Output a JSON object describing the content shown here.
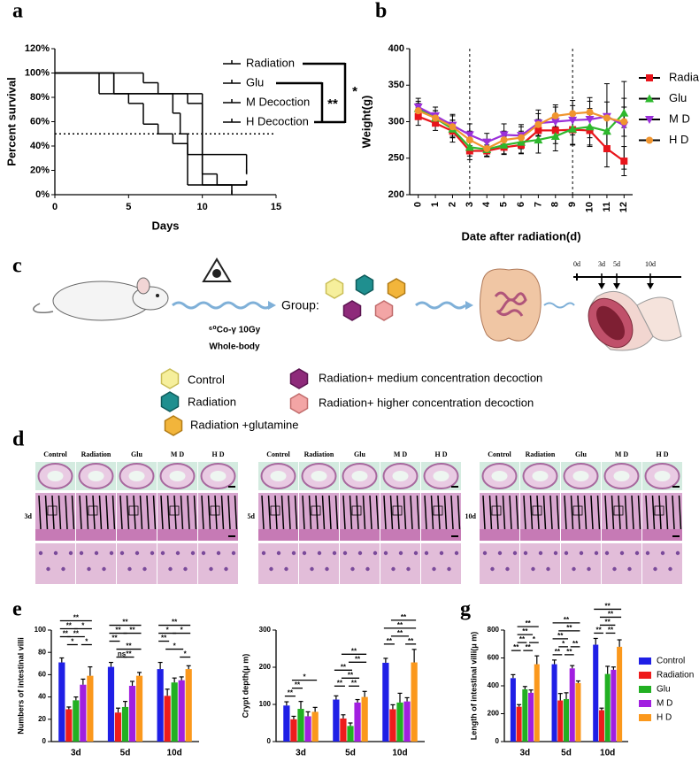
{
  "panel_labels": [
    "a",
    "b",
    "c",
    "d",
    "e",
    "g"
  ],
  "chart_data": [
    {
      "type": "step",
      "xlabel": "Days",
      "ylabel": "Percent survival",
      "xlim": [
        0,
        15
      ],
      "xticks": [
        0,
        5,
        10,
        15
      ],
      "ylim": [
        0,
        120
      ],
      "yticks": [
        {
          "value": 0,
          "label": "0%"
        },
        {
          "value": 20,
          "label": "20%"
        },
        {
          "value": 40,
          "label": "40%"
        },
        {
          "value": 60,
          "label": "60%"
        },
        {
          "value": 80,
          "label": "80%"
        },
        {
          "value": 100,
          "label": "100%"
        },
        {
          "value": 120,
          "label": "120%"
        }
      ],
      "hlines": [
        50
      ],
      "series": [
        {
          "name": "Radiation",
          "color": "#e23b3b",
          "x": [
            0,
            4,
            5,
            6,
            7,
            8,
            9,
            10,
            13
          ],
          "values": [
            100,
            83,
            75,
            58,
            50,
            42,
            33,
            8,
            8
          ]
        },
        {
          "name": "Glu",
          "color": "#33b233",
          "x": [
            0,
            3,
            8,
            8.5,
            9,
            12
          ],
          "values": [
            100,
            83,
            67,
            50,
            8,
            0
          ]
        },
        {
          "name": "M Decoction",
          "color": "#b04fd0",
          "x": [
            0,
            4,
            10,
            11,
            13
          ],
          "values": [
            100,
            83,
            17,
            8,
            8
          ]
        },
        {
          "name": "H Decoction",
          "color": "#e69a2e",
          "x": [
            0,
            6,
            7,
            9,
            10,
            13
          ],
          "values": [
            100,
            92,
            83,
            75,
            33,
            17
          ]
        }
      ],
      "annotations": [
        "**",
        "*"
      ]
    },
    {
      "type": "line",
      "xlabel": "Date after radiation(d)",
      "ylabel": "Weight(g)",
      "xlim": [
        -0.5,
        12.5
      ],
      "xticks": [
        0,
        1,
        2,
        3,
        4,
        5,
        6,
        7,
        8,
        9,
        10,
        11,
        12
      ],
      "xtick_rotation": -90,
      "ylim": [
        200,
        400
      ],
      "yticks": [
        200,
        250,
        300,
        350,
        400
      ],
      "vlines": [
        3,
        9
      ],
      "x": [
        0,
        1,
        2,
        3,
        4,
        5,
        6,
        7,
        8,
        9,
        10,
        11,
        12
      ],
      "series": [
        {
          "name": "Radiation",
          "color": "#e8141b",
          "marker": "square",
          "values": [
            307,
            298,
            287,
            260,
            260,
            265,
            268,
            288,
            288,
            289,
            288,
            263,
            246
          ],
          "errors": [
            12,
            10,
            15,
            12,
            8,
            10,
            12,
            15,
            18,
            20,
            22,
            25,
            20
          ]
        },
        {
          "name": "Glu",
          "color": "#2db82d",
          "marker": "triangle",
          "values": [
            318,
            305,
            290,
            265,
            262,
            268,
            272,
            275,
            280,
            290,
            293,
            287,
            312
          ],
          "errors": [
            10,
            10,
            12,
            12,
            10,
            12,
            15,
            18,
            20,
            22,
            25,
            22,
            20
          ]
        },
        {
          "name": "M D",
          "color": "#9b30d9",
          "marker": "triangle-down",
          "values": [
            320,
            308,
            295,
            282,
            272,
            282,
            281,
            298,
            300,
            302,
            303,
            307,
            295
          ],
          "errors": [
            12,
            12,
            15,
            15,
            12,
            15,
            15,
            18,
            20,
            20,
            25,
            45,
            60
          ]
        },
        {
          "name": "H D",
          "color": "#f0952f",
          "marker": "circle",
          "values": [
            315,
            305,
            293,
            275,
            263,
            275,
            278,
            296,
            308,
            311,
            313,
            305,
            300
          ],
          "errors": [
            10,
            10,
            15,
            12,
            10,
            12,
            15,
            15,
            15,
            18,
            20,
            22,
            20
          ]
        }
      ]
    },
    {
      "type": "bar",
      "ylabel": "Numbers of intestinal villi",
      "categories": [
        "3d",
        "5d",
        "10d"
      ],
      "ylim": [
        0,
        100
      ],
      "yticks": [
        0,
        20,
        40,
        60,
        80,
        100
      ],
      "series": [
        {
          "color": "#1f1fe6",
          "values": [
            71,
            67,
            65
          ],
          "errors": [
            4,
            4,
            6
          ]
        },
        {
          "color": "#ee1c1c",
          "values": [
            29,
            26,
            41
          ],
          "errors": [
            2,
            4,
            6
          ]
        },
        {
          "color": "#22b022",
          "values": [
            37,
            31,
            53
          ],
          "errors": [
            3,
            5,
            4
          ]
        },
        {
          "color": "#a11fe0",
          "values": [
            51,
            50,
            55
          ],
          "errors": [
            5,
            4,
            3
          ]
        },
        {
          "color": "#fb981c",
          "values": [
            59,
            59,
            65
          ],
          "errors": [
            8,
            3,
            3
          ]
        }
      ],
      "annotations": [
        "**",
        "**",
        "*",
        "**",
        "**",
        "*",
        "*",
        "**",
        "**",
        "**",
        "**",
        "**",
        "ns",
        "**",
        "**",
        "*",
        "*",
        "**",
        "*",
        "*"
      ]
    },
    {
      "type": "bar",
      "ylabel": "Crypt depth(μ m)",
      "categories": [
        "3d",
        "5d",
        "10d"
      ],
      "ylim": [
        0,
        300
      ],
      "yticks": [
        0,
        100,
        200,
        300
      ],
      "series": [
        {
          "color": "#1f1fe6",
          "values": [
            97,
            113,
            212
          ],
          "errors": [
            10,
            10,
            12
          ]
        },
        {
          "color": "#ee1c1c",
          "values": [
            60,
            62,
            87
          ],
          "errors": [
            8,
            10,
            12
          ]
        },
        {
          "color": "#22b022",
          "values": [
            88,
            42,
            105
          ],
          "errors": [
            20,
            8,
            25
          ]
        },
        {
          "color": "#a11fe0",
          "values": [
            68,
            105,
            108
          ],
          "errors": [
            12,
            8,
            10
          ]
        },
        {
          "color": "#fb981c",
          "values": [
            80,
            120,
            213
          ],
          "errors": [
            12,
            15,
            35
          ]
        }
      ],
      "annotations": [
        "**",
        "**",
        "*",
        "**",
        "**",
        "**",
        "**",
        "**",
        "**",
        "**",
        "**",
        "**",
        "**",
        "**"
      ]
    },
    {
      "type": "bar",
      "ylabel": "Length of intestinal villi(μ m)",
      "categories": [
        "3d",
        "5d",
        "10d"
      ],
      "ylim": [
        0,
        800
      ],
      "yticks": [
        0,
        200,
        400,
        600,
        800
      ],
      "legend": "right",
      "series": [
        {
          "name": "Control",
          "color": "#1f1fe6",
          "values": [
            455,
            555,
            695
          ],
          "errors": [
            25,
            30,
            45
          ]
        },
        {
          "name": "Radiation",
          "color": "#ee1c1c",
          "values": [
            250,
            295,
            225
          ],
          "errors": [
            15,
            50,
            15
          ]
        },
        {
          "name": "Glu",
          "color": "#22b022",
          "values": [
            375,
            305,
            485
          ],
          "errors": [
            20,
            45,
            55
          ]
        },
        {
          "name": "M D",
          "color": "#a11fe0",
          "values": [
            350,
            525,
            515
          ],
          "errors": [
            20,
            20,
            20
          ]
        },
        {
          "name": "H D",
          "color": "#fb981c",
          "values": [
            555,
            420,
            680
          ],
          "errors": [
            60,
            15,
            50
          ]
        }
      ],
      "annotations": [
        "**",
        "**",
        "**",
        "*",
        "**",
        "**",
        "**",
        "**",
        "*",
        "**",
        "**",
        "**",
        "**",
        "**",
        "**",
        "**",
        "**",
        "**"
      ]
    }
  ],
  "diagram": {
    "dose": "⁶⁰Co-γ  10Gy",
    "exposure": "Whole-body",
    "group_label": "Group:",
    "timeline": [
      "0d",
      "3d",
      "5d",
      "10d"
    ],
    "legend": [
      "Control",
      "Radiation",
      "Radiation +glutamine",
      "Radiation+ medium concentration decoction",
      "Radiation+ higher concentration decoction"
    ]
  },
  "histology": {
    "panels": [
      {
        "label": "3d",
        "columns": [
          "Control",
          "Radiation",
          "Glu",
          "M D",
          "H D"
        ]
      },
      {
        "label": "5d",
        "columns": [
          "Control",
          "Radiation",
          "Glu",
          "M D",
          "H D"
        ]
      },
      {
        "label": "10d",
        "columns": [
          "Control",
          "Radiation",
          "Glu",
          "M D",
          "H D"
        ]
      }
    ]
  }
}
